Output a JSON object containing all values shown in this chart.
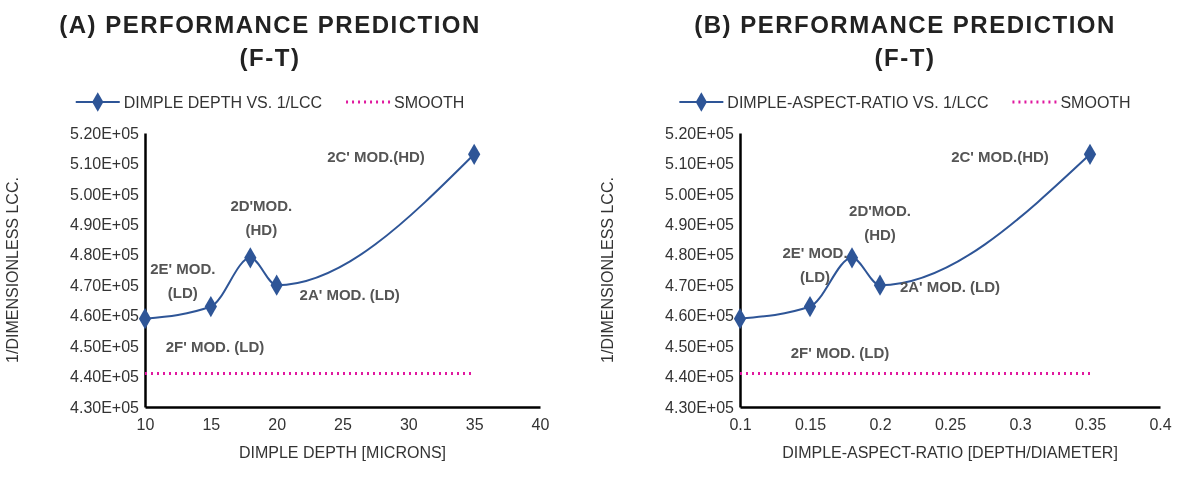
{
  "chart_data": [
    {
      "type": "line",
      "title": "(A) PERFORMANCE PREDICTION\n(F-T)",
      "xlabel": "DIMPLE DEPTH [MICRONS]",
      "ylabel": "1/DIMENSIONLESS LCC.",
      "xlim": [
        10,
        40
      ],
      "xticks": [
        10,
        15,
        20,
        25,
        30,
        35,
        40
      ],
      "ylim": [
        430000,
        520000
      ],
      "yticks": [
        {
          "value": 430000,
          "label": "4.30E+05"
        },
        {
          "value": 440000,
          "label": "4.40E+05"
        },
        {
          "value": 450000,
          "label": "4.50E+05"
        },
        {
          "value": 460000,
          "label": "4.60E+05"
        },
        {
          "value": 470000,
          "label": "4.70E+05"
        },
        {
          "value": 480000,
          "label": "4.80E+05"
        },
        {
          "value": 490000,
          "label": "4.90E+05"
        },
        {
          "value": 500000,
          "label": "5.00E+05"
        },
        {
          "value": 510000,
          "label": "5.10E+05"
        },
        {
          "value": 520000,
          "label": "5.20E+05"
        }
      ],
      "grid": false,
      "legend": "top",
      "series": [
        {
          "name": "DIMPLE DEPTH VS. 1/LCC",
          "color": "#2e5597",
          "marker": "diamond",
          "line_style": "solid",
          "x": [
            10,
            15,
            18,
            20,
            35
          ],
          "values": [
            459000,
            463000,
            479000,
            470000,
            513000
          ]
        },
        {
          "name": "SMOOTH",
          "color": "#e0199f",
          "marker": "none",
          "line_style": "dotted",
          "x": [
            10,
            35
          ],
          "values": [
            441000,
            441000
          ]
        }
      ],
      "annotations": [
        {
          "text": "2F' MOD. (LD)",
          "x": 10,
          "y": 459000
        },
        {
          "text": "2E' MOD.\n(LD)",
          "x": 15,
          "y": 463000
        },
        {
          "text": "2D'MOD.\n(HD)",
          "x": 18,
          "y": 479000
        },
        {
          "text": "2A' MOD. (LD)",
          "x": 20,
          "y": 470000
        },
        "2C' MOD.(HD)"
      ]
    },
    {
      "type": "line",
      "title": "(B) PERFORMANCE PREDICTION\n(F-T)",
      "xlabel": "DIMPLE-ASPECT-RATIO  [DEPTH/DIAMETER]",
      "ylabel": "1/DIMENSIONLESS LCC.",
      "xlim": [
        0.1,
        0.4
      ],
      "xticks": [
        0.1,
        0.15,
        0.2,
        0.25,
        0.3,
        0.35,
        0.4
      ],
      "ylim": [
        430000,
        520000
      ],
      "yticks": [
        {
          "value": 430000,
          "label": "4.30E+05"
        },
        {
          "value": 440000,
          "label": "4.40E+05"
        },
        {
          "value": 450000,
          "label": "4.50E+05"
        },
        {
          "value": 460000,
          "label": "4.60E+05"
        },
        {
          "value": 470000,
          "label": "4.70E+05"
        },
        {
          "value": 480000,
          "label": "4.80E+05"
        },
        {
          "value": 490000,
          "label": "4.90E+05"
        },
        {
          "value": 500000,
          "label": "5.00E+05"
        },
        {
          "value": 510000,
          "label": "5.10E+05"
        },
        {
          "value": 520000,
          "label": "5.20E+05"
        }
      ],
      "grid": false,
      "legend": "top",
      "series": [
        {
          "name": "DIMPLE-ASPECT-RATIO VS. 1/LCC",
          "color": "#2e5597",
          "marker": "diamond",
          "line_style": "solid",
          "x": [
            0.1,
            0.15,
            0.18,
            0.2,
            0.35
          ],
          "values": [
            459000,
            463000,
            479000,
            470000,
            513000
          ]
        },
        {
          "name": "SMOOTH",
          "color": "#e0199f",
          "marker": "none",
          "line_style": "dotted",
          "x": [
            0.1,
            0.35
          ],
          "values": [
            441000,
            441000
          ]
        }
      ],
      "annotations": [
        "2F' MOD. (LD)",
        {
          "text": "2E' MOD.\n(LD)",
          "x": 0.15,
          "y": 463000
        },
        {
          "text": "2D'MOD.\n(HD)",
          "x": 0.18,
          "y": 479000
        },
        {
          "text": "2A' MOD. (LD)",
          "x": 0.2,
          "y": 470000
        },
        "2C' MOD.(HD)"
      ]
    }
  ]
}
